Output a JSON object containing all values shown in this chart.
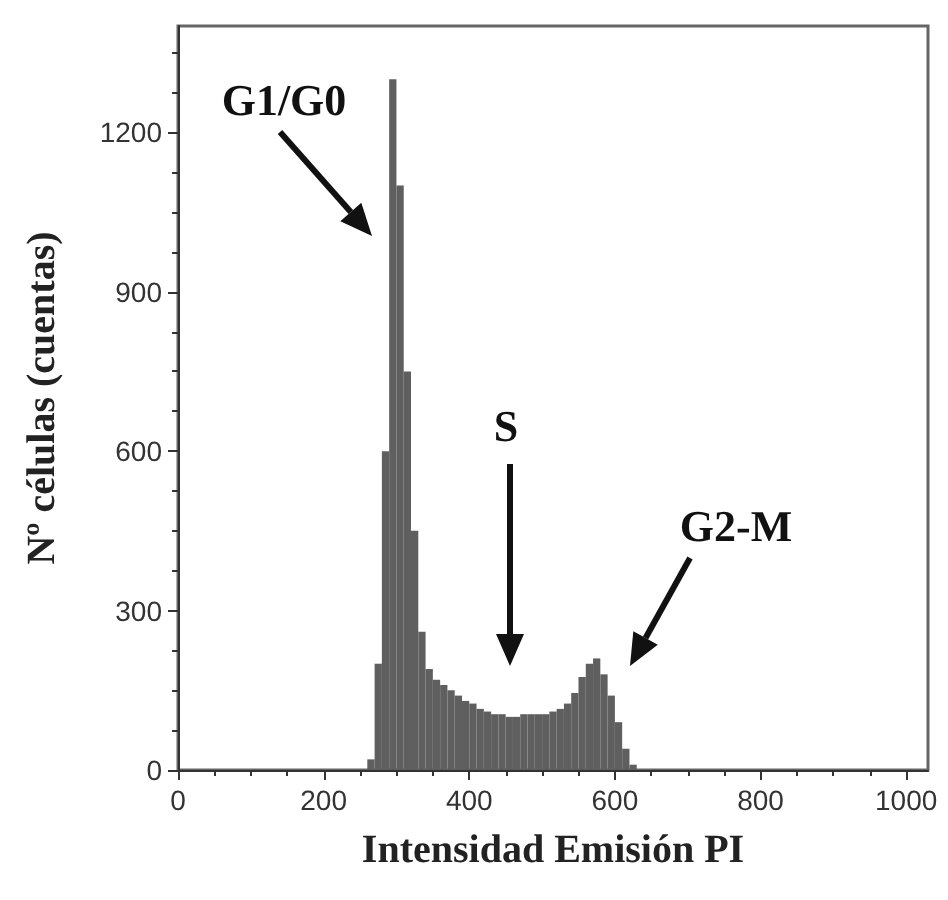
{
  "chart_data": {
    "type": "histogram",
    "xlabel": "Intensidad Emisión PI",
    "ylabel": "Nº células (cuentas)",
    "bins": [
      260,
      270,
      280,
      290,
      300,
      310,
      320,
      330,
      340,
      350,
      360,
      370,
      380,
      390,
      400,
      410,
      420,
      430,
      440,
      450,
      460,
      470,
      480,
      490,
      500,
      510,
      520,
      530,
      540,
      550,
      560,
      570,
      580,
      590,
      600,
      610,
      620,
      630
    ],
    "values": [
      20,
      200,
      600,
      1300,
      1100,
      750,
      450,
      260,
      190,
      170,
      160,
      150,
      140,
      130,
      125,
      115,
      110,
      105,
      105,
      100,
      100,
      105,
      105,
      105,
      105,
      110,
      115,
      125,
      145,
      175,
      200,
      210,
      180,
      140,
      90,
      40,
      10
    ],
    "color": "#5f5f5f",
    "xlim": [
      0,
      1030
    ],
    "xticks": [
      0,
      200,
      400,
      600,
      800,
      1000
    ],
    "ylim": [
      0,
      1400
    ],
    "yticks": [
      0,
      300,
      600,
      900,
      1200
    ],
    "grid": false,
    "annotations": [
      "G1/G0",
      "S",
      "G2-M"
    ]
  }
}
